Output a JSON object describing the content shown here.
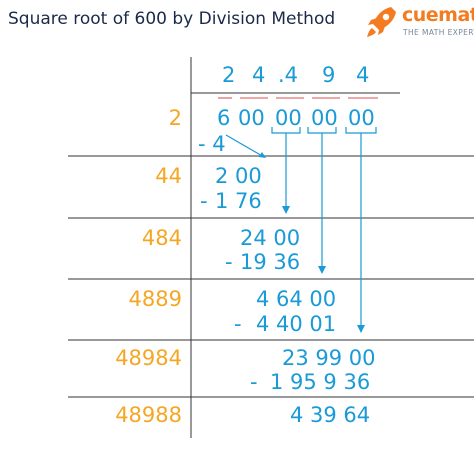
{
  "title": "Square root of 600 by Division Method",
  "logo": {
    "brand": "cuemath",
    "tagline": "THE MATH EXPERT"
  },
  "colors": {
    "divisor": "#f5a623",
    "work": "#1a9ad6",
    "title": "#1b2a4a",
    "line": "#333333",
    "pair_bar": "#e88a8a"
  },
  "quotient": [
    "2",
    "4",
    ".4",
    "9",
    "4"
  ],
  "dividend": [
    "6",
    "00",
    "00",
    "00",
    "00"
  ],
  "divisors": [
    "2",
    "44",
    "484",
    "4889",
    "48984",
    "48988"
  ],
  "subtract_minus": [
    "- 4",
    "-",
    "-",
    "-",
    "-"
  ],
  "subtract_values": [
    "1 76",
    "19 36",
    "4 40 01",
    "1 95 9 36"
  ],
  "remainders": [
    "2 00",
    "24 00",
    "4 64 00",
    "23 99 00",
    "4 39 64"
  ]
}
